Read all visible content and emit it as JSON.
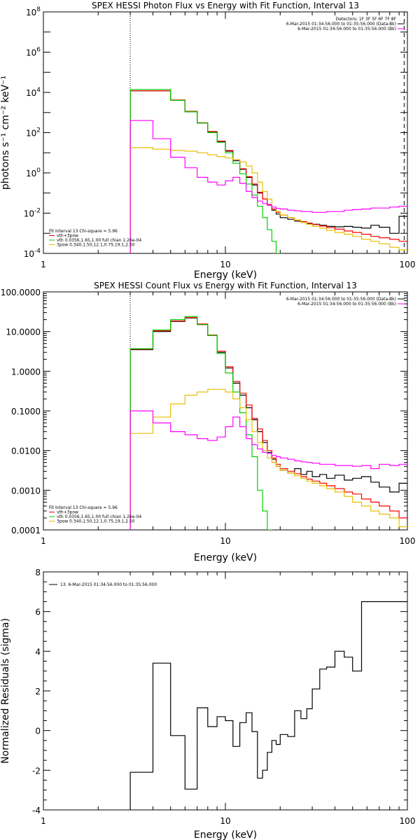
{
  "colors": {
    "data": "#000000",
    "model_total": "#ff0000",
    "thermal": "#00d000",
    "power_law": "#e8c000",
    "background": "#ff00ff"
  },
  "chart_data": [
    {
      "type": "line",
      "title": "SPEX HESSI Photon Flux vs Energy with Fit Function, Interval 13",
      "xlabel": "Energy (keV)",
      "ylabel": "photons s⁻¹ cm⁻² keV⁻¹",
      "x_scale": "log",
      "y_scale": "log",
      "xlim": [
        1,
        100
      ],
      "ylim": [
        0.0001,
        100000000
      ],
      "x_ticks": [
        {
          "v": 1,
          "label": "1"
        },
        {
          "v": 10,
          "label": "10"
        },
        {
          "v": 100,
          "label": "100"
        }
      ],
      "y_ticks": [
        {
          "v": 0.0001,
          "b": "10",
          "e": "-4"
        },
        {
          "v": 0.01,
          "b": "10",
          "e": "-2"
        },
        {
          "v": 1,
          "b": "10",
          "e": "0"
        },
        {
          "v": 100,
          "b": "10",
          "e": "2"
        },
        {
          "v": 10000,
          "b": "10",
          "e": "4"
        },
        {
          "v": 1000000,
          "b": "10",
          "e": "6"
        },
        {
          "v": 100000000,
          "b": "10",
          "e": "8"
        }
      ],
      "vlines": [
        3,
        96
      ],
      "legend_right": [
        "Detectors: 1F 3F 5F 6F 7F 8F",
        "6-Mar-2015 01:34:56.000 to 01:35:56.000 (Data-Bk)",
        "6-Mar-2015 01:34:56.000 to 01:35:56.000 (Bk)"
      ],
      "legend_left": [
        "Fit Interval 13   Chi-square = 5.96",
        "vth+3pow",
        "vth 0.0356,1.65,1.00  full chian 1.26e-04",
        "3pow 0.340,1.50,12.1,0.75,19.1,2.50"
      ],
      "edges": [
        3,
        4,
        5,
        6,
        7,
        8,
        9,
        10,
        11,
        12,
        13,
        14,
        15,
        16,
        17,
        18,
        19,
        20,
        22,
        24,
        26,
        28,
        30,
        33,
        36,
        40,
        45,
        50,
        56,
        63,
        70,
        80,
        90,
        100
      ],
      "series": [
        {
          "name": "(Data-Bk)",
          "color": "#000000",
          "values": [
            12000,
            12000,
            4000,
            1100,
            300,
            110,
            35,
            12,
            4,
            1.5,
            0.6,
            0.25,
            0.1,
            0.05,
            0.025,
            0.014,
            0.009,
            0.006,
            0.005,
            0.004,
            0.0035,
            0.003,
            0.0028,
            0.0025,
            0.0022,
            0.0021,
            0.0022,
            0.002,
            0.0018,
            0.0025,
            0.002,
            0.001,
            0.007
          ]
        },
        {
          "name": "vth+3pow",
          "color": "#ff0000",
          "values": [
            12000,
            12000,
            4200,
            1150,
            310,
            115,
            38,
            13,
            4.5,
            1.6,
            0.65,
            0.28,
            0.11,
            0.05,
            0.027,
            0.016,
            0.011,
            0.008,
            0.006,
            0.0045,
            0.0038,
            0.0032,
            0.0027,
            0.0023,
            0.0019,
            0.0016,
            0.0013,
            0.0011,
            0.0009,
            0.0007,
            0.0006,
            0.0005,
            0.0004
          ]
        },
        {
          "name": "vth",
          "color": "#00d000",
          "values": [
            14000,
            14000,
            4000,
            1100,
            300,
            100,
            33,
            10,
            3,
            0.9,
            0.28,
            0.08,
            0.022,
            0.006,
            0.0015,
            0.0004,
            0.0001,
            1e-05
          ]
        },
        {
          "name": "3pow",
          "color": "#e8c000",
          "values": [
            18,
            15,
            13,
            12,
            10,
            8,
            6.5,
            5.5,
            4.5,
            3.5,
            2.2,
            1,
            0.35,
            0.12,
            0.05,
            0.02,
            0.012,
            0.008,
            0.006,
            0.0045,
            0.0035,
            0.0028,
            0.0022,
            0.0018,
            0.0014,
            0.0011,
            0.0009,
            0.0007,
            0.0005,
            0.0004,
            0.0003,
            0.0002,
            0.00015
          ]
        },
        {
          "name": "(Bk)",
          "color": "#ff00ff",
          "values": [
            400,
            50,
            6,
            1.8,
            0.6,
            0.35,
            0.25,
            0.4,
            0.6,
            0.3,
            0.12,
            0.06,
            0.04,
            0.03,
            0.025,
            0.02,
            0.017,
            0.016,
            0.014,
            0.013,
            0.012,
            0.012,
            0.011,
            0.011,
            0.012,
            0.012,
            0.014,
            0.015,
            0.016,
            0.018,
            0.018,
            0.02,
            0.022
          ]
        }
      ]
    },
    {
      "type": "line",
      "title": "SPEX HESSI Count Flux vs Energy with Fit Function, Interval 13",
      "xlabel": "Energy (keV)",
      "ylabel": "",
      "x_scale": "log",
      "y_scale": "log",
      "xlim": [
        1,
        100
      ],
      "ylim": [
        0.0001,
        100
      ],
      "x_ticks": [
        {
          "v": 1,
          "label": "1"
        },
        {
          "v": 10,
          "label": "10"
        },
        {
          "v": 100,
          "label": "100"
        }
      ],
      "y_ticks": [
        {
          "v": 0.0001,
          "label": "0.0001"
        },
        {
          "v": 0.001,
          "label": "0.0010"
        },
        {
          "v": 0.01,
          "label": "0.0100"
        },
        {
          "v": 0.1,
          "label": "0.1000"
        },
        {
          "v": 1,
          "label": "1.0000"
        },
        {
          "v": 10,
          "label": "10.0000"
        },
        {
          "v": 100,
          "label": "100.0000"
        }
      ],
      "vlines": [
        3
      ],
      "legend_right": [
        "6-Mar-2015 01:34:56.000 to 01:35:56.000 (Data-Bk)",
        "6-Mar-2015 01:34:56.000 to 01:35:56.000 (Bk)"
      ],
      "legend_left": [
        "Fit Interval 13   Chi-square = 5.96",
        "vth+3pow",
        "vth 0.0356,1.65,1.00  full chian 1.26e-04",
        "3pow 0.340,1.50,12.1,0.75,19.1,2.50"
      ],
      "edges": [
        3,
        4,
        5,
        6,
        7,
        8,
        9,
        10,
        11,
        12,
        13,
        14,
        15,
        16,
        17,
        18,
        19,
        20,
        22,
        24,
        26,
        28,
        30,
        33,
        36,
        40,
        45,
        50,
        56,
        63,
        70,
        80,
        90,
        100
      ],
      "series": [
        {
          "name": "(Data-Bk)",
          "color": "#000000",
          "values": [
            3.5,
            10,
            18,
            22,
            15,
            8,
            3,
            1.2,
            0.5,
            0.25,
            0.12,
            0.06,
            0.03,
            0.016,
            0.009,
            0.006,
            0.004,
            0.0032,
            0.0027,
            0.0035,
            0.0025,
            0.003,
            0.0022,
            0.0025,
            0.002,
            0.0024,
            0.0018,
            0.002,
            0.0022,
            0.0016,
            0.0012,
            0.0009,
            0.0015
          ]
        },
        {
          "name": "vth+3pow",
          "color": "#ff0000",
          "values": [
            3.6,
            10.5,
            18.5,
            22.5,
            15.5,
            8.2,
            3.2,
            1.3,
            0.55,
            0.28,
            0.14,
            0.065,
            0.035,
            0.018,
            0.01,
            0.0065,
            0.0045,
            0.0035,
            0.003,
            0.0026,
            0.0022,
            0.0019,
            0.0017,
            0.0015,
            0.0013,
            0.0011,
            0.0009,
            0.0008,
            0.0006,
            0.0005,
            0.0004,
            0.0003,
            0.0002
          ]
        },
        {
          "name": "vth",
          "color": "#00d000",
          "values": [
            3.7,
            11,
            20,
            24,
            15,
            8,
            2.8,
            0.9,
            0.3,
            0.09,
            0.025,
            0.007,
            0.001,
            0.0003,
            0.0001,
            5e-05
          ]
        },
        {
          "name": "3pow",
          "color": "#e8c000",
          "values": [
            0.027,
            0.07,
            0.15,
            0.25,
            0.3,
            0.35,
            0.35,
            0.3,
            0.2,
            0.12,
            0.06,
            0.03,
            0.016,
            0.01,
            0.0065,
            0.005,
            0.004,
            0.0032,
            0.0027,
            0.0023,
            0.002,
            0.0017,
            0.0015,
            0.0013,
            0.0011,
            0.0009,
            0.0007,
            0.0005,
            0.0004,
            0.0003,
            0.00025,
            0.0002,
            0.00012
          ]
        },
        {
          "name": "(Bk)",
          "color": "#ff00ff",
          "values": [
            0.1,
            0.05,
            0.03,
            0.025,
            0.02,
            0.018,
            0.022,
            0.04,
            0.07,
            0.04,
            0.02,
            0.014,
            0.011,
            0.009,
            0.0085,
            0.0075,
            0.007,
            0.0065,
            0.006,
            0.0055,
            0.0052,
            0.005,
            0.0048,
            0.0045,
            0.0045,
            0.0042,
            0.0042,
            0.004,
            0.0042,
            0.0035,
            0.0045,
            0.0042,
            0.0045
          ]
        }
      ]
    },
    {
      "type": "line",
      "title": "",
      "xlabel": "Energy (keV)",
      "ylabel": "Normalized Residuals (sigma)",
      "x_scale": "log",
      "y_scale": "linear",
      "xlim": [
        1,
        100
      ],
      "ylim": [
        -4,
        8
      ],
      "x_ticks": [
        {
          "v": 1,
          "label": "1"
        },
        {
          "v": 10,
          "label": "10"
        },
        {
          "v": 100,
          "label": "100"
        }
      ],
      "y_ticks": [
        {
          "v": -4,
          "label": "-4"
        },
        {
          "v": -2,
          "label": "-2"
        },
        {
          "v": 0,
          "label": "0"
        },
        {
          "v": 2,
          "label": "2"
        },
        {
          "v": 4,
          "label": "4"
        },
        {
          "v": 6,
          "label": "6"
        },
        {
          "v": 8,
          "label": "8"
        }
      ],
      "vlines": [],
      "legend_right": [],
      "legend_left": [
        "13.  6-Mar-2015 01:34:56.000 to 01:35:56.000"
      ],
      "edges": [
        3,
        4,
        5,
        6,
        7,
        8,
        9,
        10,
        11,
        12,
        13,
        14,
        15,
        16,
        17,
        18,
        19,
        20,
        22,
        24,
        26,
        28,
        30,
        33,
        36,
        40,
        45,
        50,
        56,
        63,
        70,
        80,
        90,
        100
      ],
      "series": [
        {
          "name": "residuals",
          "color": "#000000",
          "values": [
            -2.1,
            3.4,
            -0.25,
            -2.95,
            1.15,
            0.2,
            0.7,
            0.5,
            -0.8,
            0.4,
            0.9,
            -0.05,
            -2.4,
            -2.0,
            -1.1,
            -0.5,
            -0.7,
            -0.2,
            -0.3,
            1.0,
            0.6,
            1.1,
            2.1,
            3.1,
            3.2,
            4.0,
            3.7,
            3.0,
            6.5,
            6.5,
            6.5,
            6.5,
            6.5
          ]
        }
      ]
    }
  ]
}
